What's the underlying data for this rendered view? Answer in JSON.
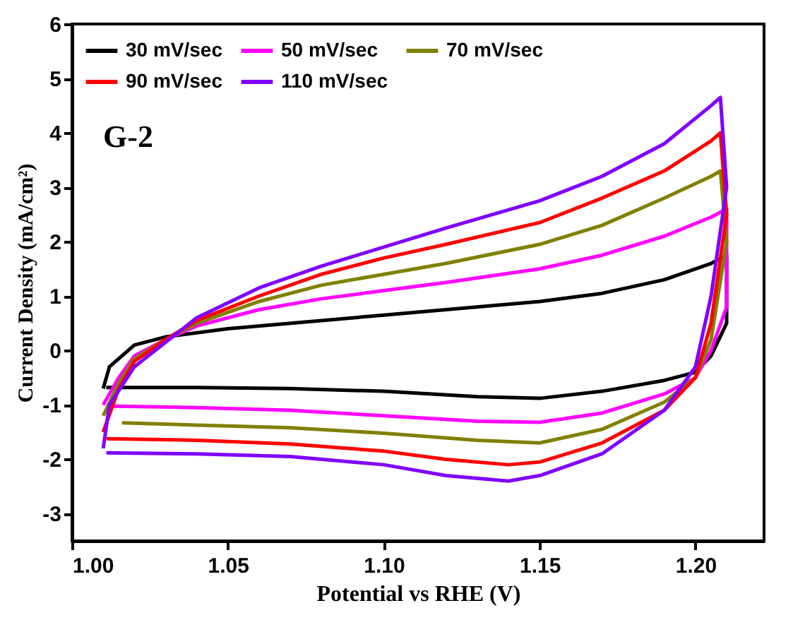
{
  "chart_data": {
    "type": "line",
    "xlabel": "Potential vs RHE (V)",
    "ylabel": "Current Density (mA/cm²)",
    "annotations": [
      "G-2"
    ],
    "xlim": [
      1.0,
      1.222
    ],
    "ylim": [
      -3.5,
      6
    ],
    "xticks": [
      {
        "value": 1.0,
        "label": "1.00"
      },
      {
        "value": 1.05,
        "label": "1.05"
      },
      {
        "value": 1.1,
        "label": "1.10"
      },
      {
        "value": 1.15,
        "label": "1.15"
      },
      {
        "value": 1.2,
        "label": "1.20"
      }
    ],
    "yticks": [
      -3,
      -2,
      -1,
      0,
      1,
      2,
      3,
      4,
      5,
      6
    ],
    "grid": false,
    "legend": "top left",
    "line_style": "solid",
    "marker": "none",
    "series": [
      {
        "name": "30 mV/sec",
        "color": "#000000",
        "x": [
          1.01,
          1.012,
          1.02,
          1.03,
          1.05,
          1.08,
          1.1,
          1.12,
          1.15,
          1.17,
          1.19,
          1.205,
          1.21,
          1.21,
          1.205,
          1.2,
          1.19,
          1.17,
          1.15,
          1.13,
          1.1,
          1.07,
          1.04,
          1.011
        ],
        "values": [
          -0.7,
          -0.3,
          0.1,
          0.25,
          0.4,
          0.55,
          0.65,
          0.75,
          0.9,
          1.05,
          1.3,
          1.6,
          1.75,
          0.5,
          -0.1,
          -0.4,
          -0.55,
          -0.75,
          -0.88,
          -0.85,
          -0.75,
          -0.7,
          -0.68,
          -0.68
        ]
      },
      {
        "name": "50 mV/sec",
        "color": "#ff00ff",
        "x": [
          1.01,
          1.015,
          1.02,
          1.03,
          1.04,
          1.06,
          1.08,
          1.1,
          1.12,
          1.15,
          1.17,
          1.19,
          1.205,
          1.21,
          1.21,
          1.205,
          1.2,
          1.19,
          1.17,
          1.15,
          1.13,
          1.1,
          1.07,
          1.04,
          1.011
        ],
        "values": [
          -1.0,
          -0.5,
          -0.1,
          0.2,
          0.45,
          0.75,
          0.95,
          1.1,
          1.25,
          1.5,
          1.75,
          2.1,
          2.45,
          2.6,
          0.8,
          0.0,
          -0.5,
          -0.8,
          -1.15,
          -1.32,
          -1.3,
          -1.2,
          -1.1,
          -1.05,
          -1.02
        ]
      },
      {
        "name": "70 mV/sec",
        "color": "#808000",
        "x": [
          1.01,
          1.015,
          1.02,
          1.03,
          1.04,
          1.06,
          1.08,
          1.1,
          1.12,
          1.15,
          1.17,
          1.19,
          1.205,
          1.208,
          1.21,
          1.205,
          1.2,
          1.19,
          1.17,
          1.15,
          1.13,
          1.1,
          1.07,
          1.04,
          1.016
        ],
        "values": [
          -1.2,
          -0.6,
          -0.15,
          0.2,
          0.5,
          0.9,
          1.2,
          1.4,
          1.6,
          1.95,
          2.3,
          2.8,
          3.2,
          3.3,
          2.0,
          0.2,
          -0.5,
          -0.95,
          -1.45,
          -1.7,
          -1.65,
          -1.52,
          -1.42,
          -1.37,
          -1.33
        ]
      },
      {
        "name": "90 mV/sec",
        "color": "#ff0000",
        "x": [
          1.01,
          1.015,
          1.02,
          1.03,
          1.04,
          1.06,
          1.08,
          1.1,
          1.12,
          1.15,
          1.17,
          1.19,
          1.205,
          1.208,
          1.21,
          1.205,
          1.2,
          1.19,
          1.17,
          1.15,
          1.14,
          1.12,
          1.1,
          1.07,
          1.04,
          1.011
        ],
        "values": [
          -1.5,
          -0.7,
          -0.2,
          0.2,
          0.55,
          1.0,
          1.4,
          1.7,
          1.95,
          2.35,
          2.8,
          3.3,
          3.85,
          4.0,
          2.5,
          0.5,
          -0.5,
          -1.1,
          -1.7,
          -2.05,
          -2.1,
          -2.0,
          -1.85,
          -1.72,
          -1.65,
          -1.62
        ]
      },
      {
        "name": "110 mV/sec",
        "color": "#8000ff",
        "x": [
          1.01,
          1.012,
          1.02,
          1.03,
          1.04,
          1.06,
          1.08,
          1.1,
          1.12,
          1.15,
          1.17,
          1.19,
          1.205,
          1.208,
          1.21,
          1.205,
          1.2,
          1.19,
          1.17,
          1.15,
          1.14,
          1.12,
          1.1,
          1.07,
          1.04,
          1.011
        ],
        "values": [
          -1.8,
          -1.0,
          -0.3,
          0.15,
          0.6,
          1.15,
          1.55,
          1.9,
          2.25,
          2.75,
          3.2,
          3.8,
          4.5,
          4.65,
          3.0,
          1.0,
          -0.3,
          -1.1,
          -1.9,
          -2.3,
          -2.4,
          -2.3,
          -2.1,
          -1.95,
          -1.9,
          -1.88
        ]
      }
    ]
  }
}
